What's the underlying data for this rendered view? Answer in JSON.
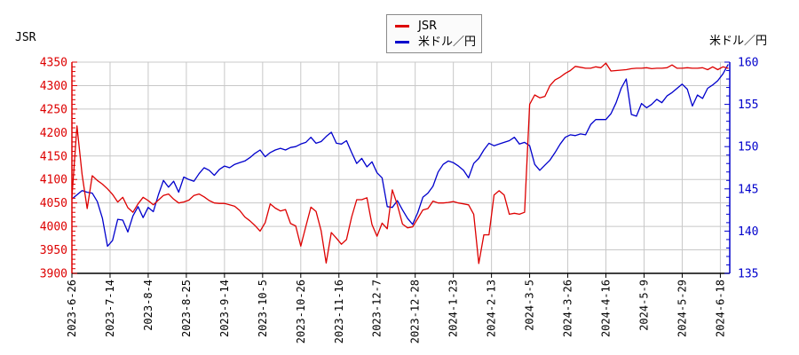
{
  "header": {
    "left_axis_title": "JSR",
    "right_axis_title": "米ドル／円"
  },
  "legend": {
    "items": [
      {
        "label": "JSR",
        "color": "#dd0000"
      },
      {
        "label": "米ドル／円",
        "color": "#0000cc"
      }
    ]
  },
  "colors": {
    "jsr_line": "#dd0000",
    "usdjpy_line": "#0000cc",
    "grid": "#c8c8c8",
    "x_axis": "#000000",
    "background": "#ffffff"
  },
  "chart_data": {
    "type": "line",
    "title": "",
    "xlabel": "",
    "x_tick_labels": [
      "2023-6-26",
      "2023-7-14",
      "2023-8-4",
      "2023-8-25",
      "2023-9-14",
      "2023-10-5",
      "2023-10-26",
      "2023-11-16",
      "2023-12-7",
      "2023-12-28",
      "2024-1-23",
      "2024-2-13",
      "2024-3-5",
      "2024-3-26",
      "2024-4-16",
      "2024-5-9",
      "2024-5-29",
      "2024-6-18"
    ],
    "sample_day_step": 2,
    "tick_day_step": 15,
    "grid": true,
    "legend_position": "top-center",
    "left_axis": {
      "label": "JSR",
      "min": 3900,
      "max": 4350,
      "tick_step": 50,
      "minor_step": 10,
      "color": "#dd0000"
    },
    "right_axis": {
      "label": "米ドル／円",
      "min": 135,
      "max": 160,
      "tick_step": 5,
      "minor_step": 1,
      "color": "#0000cc"
    },
    "series": [
      {
        "name": "JSR",
        "axis": "left",
        "color": "#dd0000",
        "values": [
          4062,
          4214,
          4110,
          4038,
          4108,
          4098,
          4090,
          4080,
          4068,
          4052,
          4062,
          4040,
          4030,
          4048,
          4062,
          4055,
          4046,
          4056,
          4066,
          4069,
          4058,
          4050,
          4052,
          4056,
          4066,
          4069,
          4063,
          4055,
          4050,
          4049,
          4049,
          4046,
          4043,
          4034,
          4020,
          4012,
          4002,
          3990,
          4008,
          4048,
          4039,
          4033,
          4036,
          4006,
          4001,
          3958,
          4000,
          4041,
          4032,
          3991,
          3922,
          3987,
          3975,
          3962,
          3972,
          4020,
          4057,
          4057,
          4061,
          4004,
          3979,
          4007,
          3995,
          4078,
          4046,
          4005,
          3997,
          3999,
          4017,
          4035,
          4038,
          4054,
          4050,
          4050,
          4051,
          4053,
          4050,
          4048,
          4046,
          4026,
          3921,
          3982,
          3982,
          4067,
          4076,
          4067,
          4026,
          4028,
          4026,
          4030,
          4260,
          4280,
          4274,
          4277,
          4300,
          4312,
          4318,
          4326,
          4332,
          4341,
          4339,
          4337,
          4337,
          4340,
          4338,
          4348,
          4331,
          4332,
          4333,
          4334,
          4336,
          4337,
          4337,
          4338,
          4336,
          4337,
          4337,
          4338,
          4344,
          4337,
          4337,
          4338,
          4337,
          4337,
          4338,
          4334,
          4340,
          4334,
          4340,
          4337
        ]
      },
      {
        "name": "米ドル／円",
        "axis": "right",
        "color": "#0000cc",
        "values": [
          143.8,
          144.3,
          144.8,
          144.6,
          144.5,
          143.5,
          141.5,
          138.2,
          138.9,
          141.4,
          141.3,
          139.9,
          141.8,
          142.9,
          141.6,
          142.8,
          142.3,
          144.3,
          146.0,
          145.2,
          145.9,
          144.6,
          146.4,
          146.1,
          145.9,
          146.8,
          147.5,
          147.2,
          146.6,
          147.3,
          147.7,
          147.5,
          147.9,
          148.1,
          148.3,
          148.7,
          149.2,
          149.6,
          148.8,
          149.3,
          149.6,
          149.8,
          149.6,
          149.9,
          150.0,
          150.3,
          150.5,
          151.1,
          150.4,
          150.6,
          151.2,
          151.7,
          150.4,
          150.3,
          150.7,
          149.3,
          148.0,
          148.6,
          147.6,
          148.2,
          146.9,
          146.3,
          142.9,
          142.8,
          143.6,
          142.5,
          141.5,
          140.8,
          142.2,
          144.0,
          144.5,
          145.3,
          147.0,
          147.9,
          148.3,
          148.1,
          147.7,
          147.2,
          146.3,
          148.0,
          148.6,
          149.6,
          150.4,
          150.1,
          150.3,
          150.5,
          150.7,
          151.1,
          150.3,
          150.5,
          150.1,
          147.9,
          147.2,
          147.8,
          148.4,
          149.3,
          150.3,
          151.1,
          151.4,
          151.3,
          151.5,
          151.4,
          152.6,
          153.2,
          153.2,
          153.2,
          153.9,
          155.2,
          156.9,
          158.0,
          153.8,
          153.6,
          155.1,
          154.6,
          155.0,
          155.6,
          155.2,
          156.0,
          156.4,
          156.9,
          157.4,
          156.8,
          154.8,
          156.1,
          155.7,
          156.9,
          157.3,
          157.8,
          158.6,
          159.7
        ]
      }
    ]
  }
}
